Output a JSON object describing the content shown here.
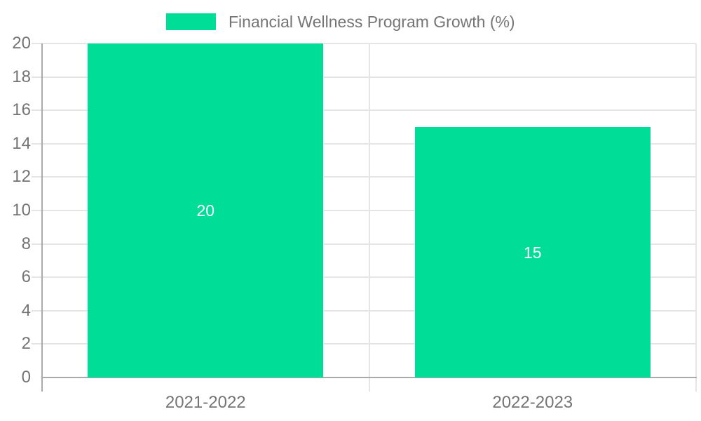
{
  "chart_data": {
    "type": "bar",
    "title": "Financial Wellness Program Growth (%)",
    "categories": [
      "2021-2022",
      "2022-2023"
    ],
    "series": [
      {
        "name": "Financial Wellness Program Growth (%)",
        "values": [
          20,
          15
        ]
      }
    ],
    "data_labels": [
      "20",
      "15"
    ],
    "xlabel": "",
    "ylabel": "",
    "ylim": [
      0,
      20
    ],
    "yticks": [
      0,
      2,
      4,
      6,
      8,
      10,
      12,
      14,
      16,
      18,
      20
    ],
    "grid": true,
    "legend_position": "top"
  },
  "legend": {
    "label": "Financial Wellness Program Growth (%)"
  },
  "colors": {
    "bar": "#00dd96",
    "axis_line": "#aaaaaa",
    "grid_line": "#e5e5e5",
    "tick_text": "#757575",
    "legend_text": "#757575",
    "data_label_text": "#ffffff",
    "background": "#ffffff"
  }
}
